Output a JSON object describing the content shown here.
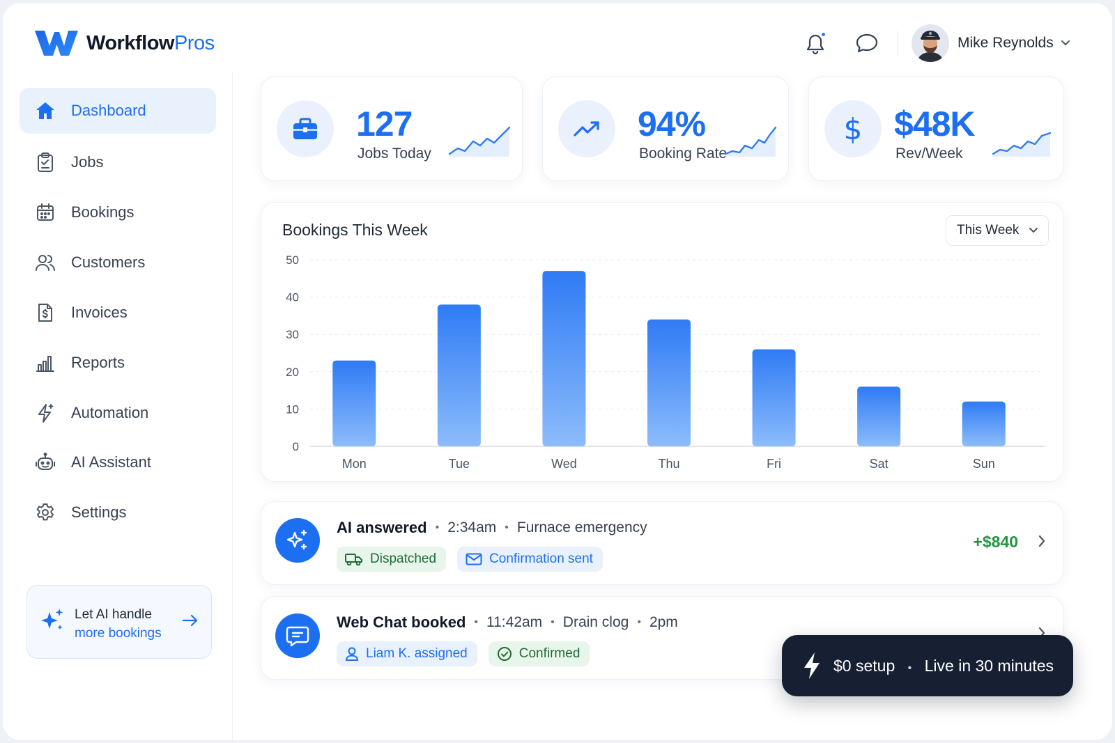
{
  "brand": {
    "name_a": "Workflow",
    "name_b": "Pros",
    "logo": "w-logo"
  },
  "header": {
    "notification_icon": "bell-icon",
    "message_icon": "chat-icon",
    "user": {
      "name": "Mike Reynolds",
      "dropdown_icon": "chevron-down-icon"
    }
  },
  "sidebar": {
    "items": [
      {
        "label": "Dashboard",
        "icon": "home-icon",
        "active": true
      },
      {
        "label": "Jobs",
        "icon": "clipboard-icon",
        "active": false
      },
      {
        "label": "Bookings",
        "icon": "calendar-icon",
        "active": false
      },
      {
        "label": "Customers",
        "icon": "users-icon",
        "active": false
      },
      {
        "label": "Invoices",
        "icon": "invoice-icon",
        "active": false
      },
      {
        "label": "Reports",
        "icon": "bar-chart-icon",
        "active": false
      },
      {
        "label": "Automation",
        "icon": "lightning-icon",
        "active": false
      },
      {
        "label": "AI Assistant",
        "icon": "robot-icon",
        "active": false
      },
      {
        "label": "Settings",
        "icon": "gear-icon",
        "active": false
      }
    ],
    "promo": {
      "line1": "Let AI handle",
      "line2": "more bookings"
    }
  },
  "stats": [
    {
      "value": "127",
      "caption": "Jobs Today",
      "icon": "briefcase-icon"
    },
    {
      "value": "94%",
      "caption": "Booking Rate",
      "icon": "trend-up-icon"
    },
    {
      "value": "$48K",
      "caption": "Rev/Week",
      "icon": "dollar-icon"
    }
  ],
  "chart": {
    "title": "Bookings This Week",
    "period": "This Week"
  },
  "chart_data": {
    "type": "bar",
    "title": "Bookings This Week",
    "categories": [
      "Mon",
      "Tue",
      "Wed",
      "Thu",
      "Fri",
      "Sat",
      "Sun"
    ],
    "values": [
      23,
      38,
      47,
      34,
      26,
      16,
      12
    ],
    "ylim": [
      0,
      50
    ],
    "yticks": [
      0,
      10,
      20,
      30,
      40,
      50
    ],
    "grid": true,
    "bar_color": "#2f7bf5"
  },
  "activity": [
    {
      "title": "AI answered",
      "time": "2:34am",
      "detail": "Furnace emergency",
      "extra": "",
      "icon": "sparkle-icon",
      "tags": [
        {
          "label": "Dispatched",
          "style": "green",
          "icon": "truck-icon"
        },
        {
          "label": "Confirmation sent",
          "style": "blue",
          "icon": "mail-icon"
        }
      ],
      "amount": "+$840"
    },
    {
      "title": "Web Chat booked",
      "time": "11:42am",
      "detail": "Drain clog",
      "extra": "2pm",
      "icon": "chat-bubble-icon",
      "tags": [
        {
          "label": "Liam K. assigned",
          "style": "blue",
          "icon": "user-icon"
        },
        {
          "label": "Confirmed",
          "style": "green",
          "icon": "check-circle-icon"
        }
      ],
      "amount": ""
    }
  ],
  "toast": {
    "part1": "$0 setup",
    "part2": "Live in 30 minutes",
    "icon": "bolt-icon"
  },
  "colors": {
    "accent": "#1d6ff2",
    "positive": "#22963f",
    "toast_bg": "#172033"
  }
}
